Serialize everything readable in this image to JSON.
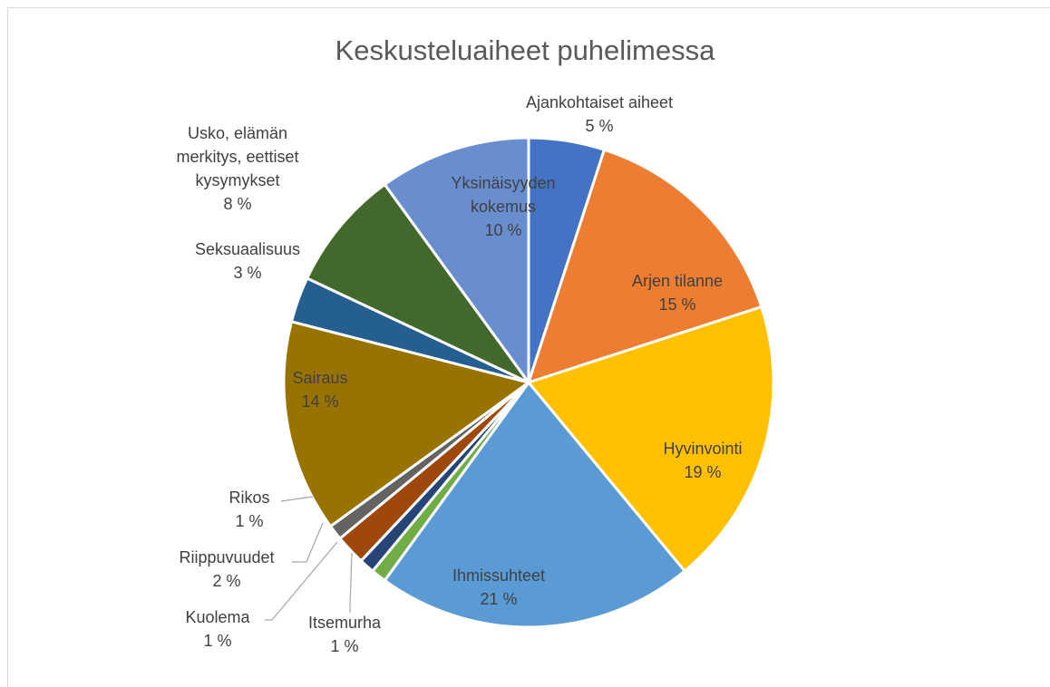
{
  "chart_data": {
    "type": "pie",
    "title": "Keskusteluaiheet puhelimessa",
    "categories": [
      "Ajankohtaiset aiheet",
      "Arjen tilanne",
      "Hyvinvointi",
      "Ihmissuhteet",
      "Itsemurha",
      "Kuolema",
      "Riippuvuudet",
      "Rikos",
      "Sairaus",
      "Seksuaalisuus",
      "Usko, elämän merkitys, eettiset kysymykset",
      "Yksinäisyyden kokemus"
    ],
    "values": [
      5,
      15,
      19,
      21,
      1,
      1,
      2,
      1,
      14,
      3,
      8,
      10
    ],
    "value_labels": [
      "5 %",
      "15 %",
      "19 %",
      "21 %",
      "1 %",
      "1 %",
      "2 %",
      "1 %",
      "14 %",
      "3 %",
      "8 %",
      "10 %"
    ],
    "colors": [
      "#4472c4",
      "#ed7d31",
      "#ffc000",
      "#5b9bd5",
      "#70ad47",
      "#264478",
      "#9e480e",
      "#636363",
      "#997300",
      "#255e91",
      "#43682b",
      "#698ed0"
    ]
  }
}
